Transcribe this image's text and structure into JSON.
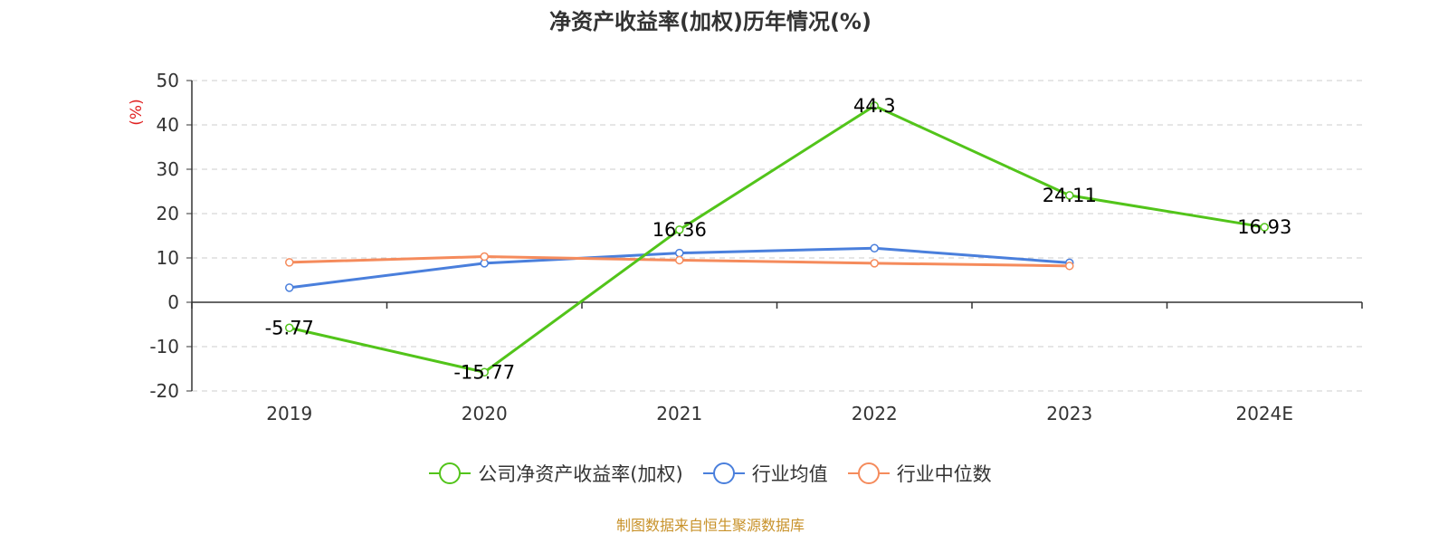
{
  "title": "净资产收益率(加权)历年情况(%)",
  "source_note": "制图数据来自恒生聚源数据库",
  "colors": {
    "company": "#52c41a",
    "industry_avg": "#4a7fdc",
    "industry_median": "#f58b5c",
    "axis": "#333333",
    "grid": "#cccccc",
    "ylabel": "#e02020",
    "source": "#c8922a"
  },
  "legend": [
    {
      "name": "公司净资产收益率(加权)",
      "color": "#52c41a",
      "icon": "circle-line-icon"
    },
    {
      "name": "行业均值",
      "color": "#4a7fdc",
      "icon": "circle-line-icon"
    },
    {
      "name": "行业中位数",
      "color": "#f58b5c",
      "icon": "circle-line-icon"
    }
  ],
  "chart_data": {
    "type": "line",
    "title": "净资产收益率(加权)历年情况(%)",
    "xlabel": "",
    "ylabel": "(%)",
    "categories": [
      "2019",
      "2020",
      "2021",
      "2022",
      "2023",
      "2024E"
    ],
    "ylim": [
      -20,
      50
    ],
    "yticks": [
      -20,
      -10,
      0,
      10,
      20,
      30,
      40,
      50
    ],
    "grid": true,
    "legend_position": "bottom",
    "series": [
      {
        "name": "公司净资产收益率(加权)",
        "color": "#52c41a",
        "values": [
          -5.77,
          -15.77,
          16.36,
          44.3,
          24.11,
          16.93
        ],
        "labels": [
          "-5.77",
          "-15.77",
          "16.36",
          "44.3",
          "24.11",
          "16.93"
        ]
      },
      {
        "name": "行业均值",
        "color": "#4a7fdc",
        "values": [
          3.3,
          8.8,
          11.1,
          12.2,
          8.9,
          null
        ]
      },
      {
        "name": "行业中位数",
        "color": "#f58b5c",
        "values": [
          9.0,
          10.3,
          9.5,
          8.8,
          8.2,
          null
        ]
      }
    ]
  }
}
